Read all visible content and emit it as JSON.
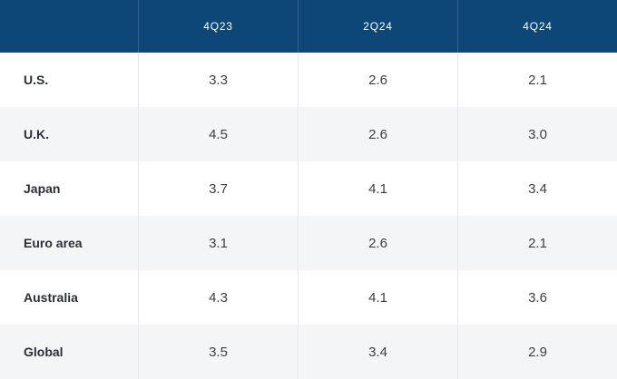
{
  "table": {
    "columns": [
      "4Q23",
      "2Q24",
      "4Q24"
    ],
    "rows": [
      {
        "region": "U.S.",
        "values": [
          "3.3",
          "2.6",
          "2.1"
        ]
      },
      {
        "region": "U.K.",
        "values": [
          "4.5",
          "2.6",
          "3.0"
        ]
      },
      {
        "region": "Japan",
        "values": [
          "3.7",
          "4.1",
          "3.4"
        ]
      },
      {
        "region": "Euro area",
        "values": [
          "3.1",
          "2.6",
          "2.1"
        ]
      },
      {
        "region": "Australia",
        "values": [
          "4.3",
          "4.1",
          "3.6"
        ]
      },
      {
        "region": "Global",
        "values": [
          "3.5",
          "3.4",
          "2.9"
        ]
      }
    ]
  },
  "colors": {
    "header_bg": "#0d4778",
    "header_text": "#ffffff",
    "row_shade": "#f4f5f7"
  }
}
